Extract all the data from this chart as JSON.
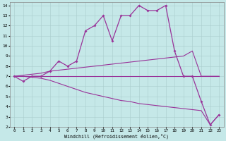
{
  "xlabel": "Windchill (Refroidissement éolien,°C)",
  "xlim": [
    -0.5,
    23.5
  ],
  "ylim": [
    2,
    14.3
  ],
  "xticks": [
    0,
    1,
    2,
    3,
    4,
    5,
    6,
    7,
    8,
    9,
    10,
    11,
    12,
    13,
    14,
    15,
    16,
    17,
    18,
    19,
    20,
    21,
    22,
    23
  ],
  "yticks": [
    2,
    3,
    4,
    5,
    6,
    7,
    8,
    9,
    10,
    11,
    12,
    13,
    14
  ],
  "bg_color": "#c5e8e8",
  "line_color": "#993399",
  "grid_color": "#aacccc",
  "series": {
    "temp": [
      7.0,
      6.5,
      7.0,
      7.0,
      7.5,
      8.5,
      8.0,
      8.5,
      11.5,
      12.0,
      13.0,
      10.5,
      13.0,
      13.0,
      14.0,
      13.5,
      13.5,
      14.0,
      9.5,
      7.0,
      7.0,
      4.5,
      2.2,
      3.2
    ],
    "upper_trend": [
      7.0,
      7.1,
      7.2,
      7.3,
      7.5,
      7.6,
      7.7,
      7.8,
      7.9,
      8.0,
      8.1,
      8.2,
      8.3,
      8.4,
      8.5,
      8.6,
      8.7,
      8.8,
      8.9,
      9.0,
      9.5,
      7.0,
      7.0,
      7.0
    ],
    "flat": [
      7.0,
      7.0,
      7.0,
      7.0,
      7.0,
      7.0,
      7.0,
      7.0,
      7.0,
      7.0,
      7.0,
      7.0,
      7.0,
      7.0,
      7.0,
      7.0,
      7.0,
      7.0,
      7.0,
      7.0,
      7.0,
      7.0,
      7.0,
      7.0
    ],
    "lower_trend": [
      7.0,
      7.0,
      6.9,
      6.8,
      6.6,
      6.3,
      6.0,
      5.7,
      5.4,
      5.2,
      5.0,
      4.8,
      4.6,
      4.5,
      4.3,
      4.2,
      4.1,
      4.0,
      3.9,
      3.8,
      3.7,
      3.6,
      2.2,
      3.2
    ]
  }
}
